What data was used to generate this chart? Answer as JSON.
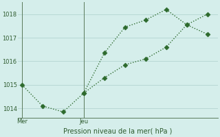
{
  "xlabel": "Pression niveau de la mer( hPa )",
  "line1_x": [
    0,
    1,
    2,
    3,
    4,
    5,
    6,
    7,
    8,
    9
  ],
  "line1_y": [
    1015.0,
    1014.1,
    1013.85,
    1014.65,
    1016.35,
    1017.45,
    1017.75,
    1018.2,
    1017.55,
    1018.0
  ],
  "line2_x": [
    3,
    4,
    5,
    6,
    7,
    8,
    9
  ],
  "line2_y": [
    1014.65,
    1015.3,
    1015.85,
    1016.1,
    1016.6,
    1017.55,
    1017.15
  ],
  "color": "#2d6a2d",
  "bg_color": "#d5eeeb",
  "grid_color": "#b8d8d4",
  "ylim": [
    1013.6,
    1018.5
  ],
  "yticks": [
    1014,
    1015,
    1016,
    1017,
    1018
  ],
  "mer_x": 0,
  "jeu_x": 3,
  "xlim": [
    -0.2,
    9.5
  ],
  "markersize": 3.5,
  "linewidth": 1.0
}
